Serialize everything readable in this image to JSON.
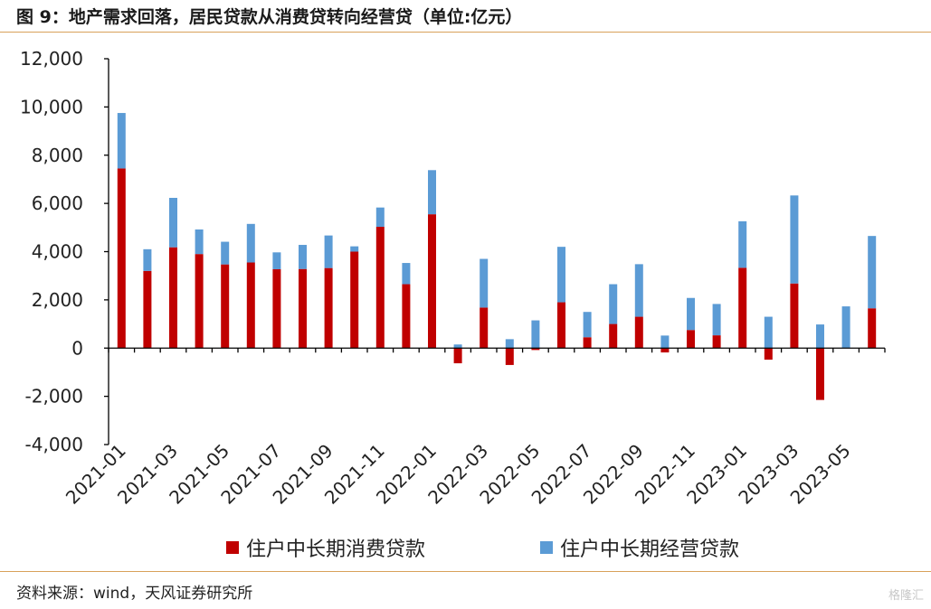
{
  "title": "图 9：地产需求回落，居民贷款从消费贷转向经营贷（单位:亿元）",
  "source": "资料来源：wind，天风证券研究所",
  "watermark": "格隆汇",
  "colors": {
    "consumer": "#c00000",
    "business": "#5b9bd5",
    "rule": "#d9a15a"
  },
  "legend": {
    "consumer_label": "住户中长期消费贷款",
    "business_label": "住户中长期经营贷款"
  },
  "chart_data": {
    "type": "bar",
    "stacked": true,
    "categories": [
      "2021-01",
      "2021-02",
      "2021-03",
      "2021-04",
      "2021-05",
      "2021-06",
      "2021-07",
      "2021-08",
      "2021-09",
      "2021-10",
      "2021-11",
      "2021-12",
      "2022-01",
      "2022-02",
      "2022-03",
      "2022-04",
      "2022-05",
      "2022-06",
      "2022-07",
      "2022-08",
      "2022-09",
      "2022-10",
      "2022-11",
      "2022-12",
      "2023-01",
      "2023-02",
      "2023-03",
      "2023-04",
      "2023-05",
      "2023-06"
    ],
    "tick_labels": [
      "2021-01",
      "2021-03",
      "2021-05",
      "2021-07",
      "2021-09",
      "2021-11",
      "2022-01",
      "2022-03",
      "2022-05",
      "2022-07",
      "2022-09",
      "2022-11",
      "2023-01",
      "2023-03",
      "2023-05"
    ],
    "series": [
      {
        "name": "住户中长期消费贷款",
        "values": [
          7450,
          3200,
          4180,
          3900,
          3470,
          3550,
          3270,
          3280,
          3320,
          4000,
          5030,
          2650,
          5550,
          -630,
          1680,
          -700,
          -80,
          1900,
          450,
          1000,
          1300,
          -180,
          750,
          530,
          3330,
          -480,
          2680,
          -2150,
          0,
          1650
        ]
      },
      {
        "name": "住户中长期经营贷款",
        "values": [
          2300,
          900,
          2050,
          1020,
          940,
          1600,
          700,
          1000,
          1350,
          220,
          800,
          880,
          1830,
          150,
          2020,
          370,
          1150,
          2300,
          1050,
          1650,
          2180,
          520,
          1330,
          1300,
          1930,
          1300,
          3650,
          980,
          1730,
          3000
        ]
      }
    ],
    "ylim": [
      -4000,
      12000
    ],
    "yticks": [
      -4000,
      -2000,
      0,
      2000,
      4000,
      6000,
      8000,
      10000,
      12000
    ],
    "ytick_labels": [
      "-4,000",
      "-2,000",
      "0",
      "2,000",
      "4,000",
      "6,000",
      "8,000",
      "10,000",
      "12,000"
    ],
    "grid": false,
    "legend_position": "bottom"
  }
}
